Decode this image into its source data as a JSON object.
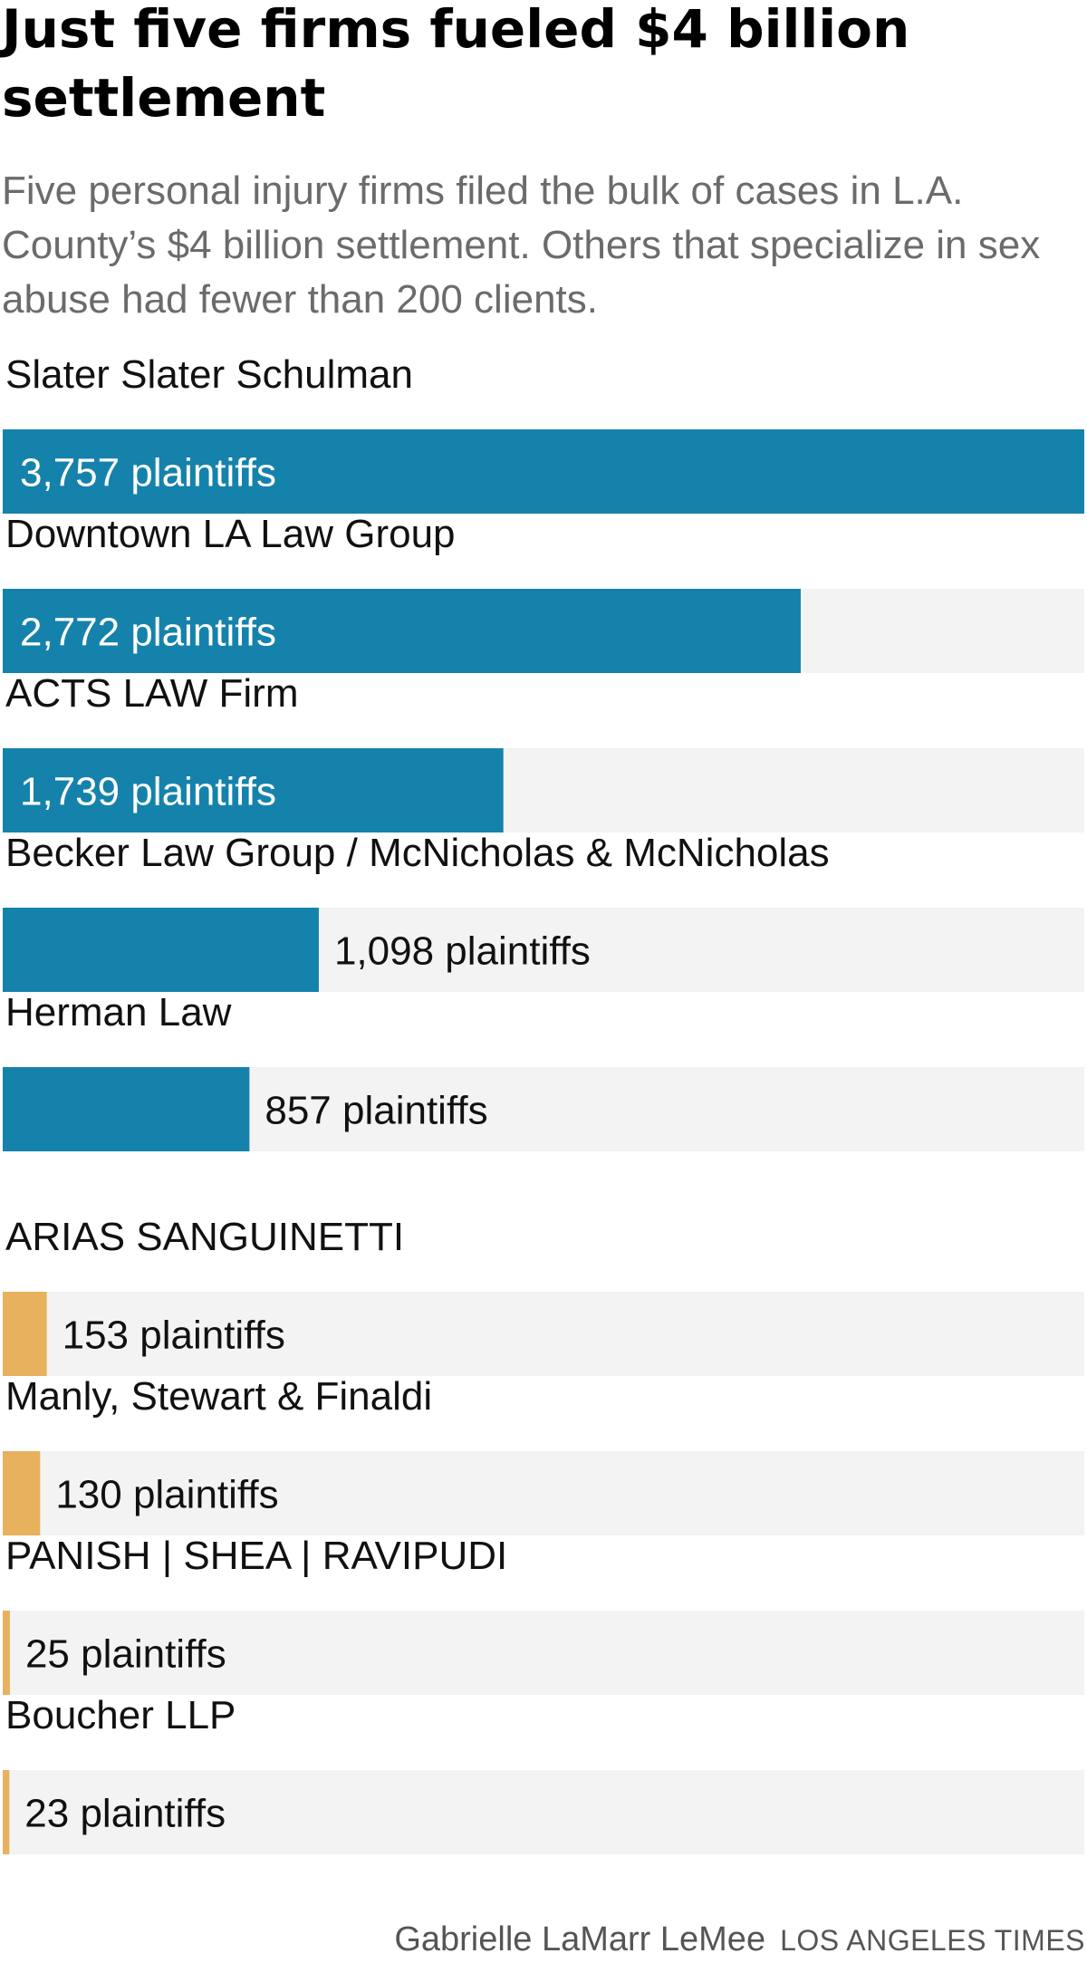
{
  "title": "Just five firms fueled $4 billion settlement",
  "subtitle": "Five personal injury firms filed the bulk of cases in L.A. County’s $4 billion settlement. Others that specialize in sex abuse had fewer than 200 clients.",
  "chart_data": {
    "type": "bar",
    "orientation": "horizontal",
    "grid": false,
    "xlim": [
      0,
      3757
    ],
    "colors": {
      "personal_injury": "#1582ab",
      "sex_abuse": "#e8b15d",
      "track": "#f3f3f3",
      "label_inside": "#ffffff",
      "label_outside": "#111111"
    },
    "groups": [
      {
        "color_key": "personal_injury",
        "bars": [
          {
            "category": "Slater Slater Schulman",
            "value": 3757,
            "label": "3,757 plaintiffs"
          },
          {
            "category": "Downtown LA Law Group",
            "value": 2772,
            "label": "2,772 plaintiffs"
          },
          {
            "category": "ACTS LAW Firm",
            "value": 1739,
            "label": "1,739 plaintiffs"
          },
          {
            "category": "Becker Law Group / McNicholas & McNicholas",
            "value": 1098,
            "label": "1,098 plaintiffs"
          },
          {
            "category": "Herman Law",
            "value": 857,
            "label": "857 plaintiffs"
          }
        ]
      },
      {
        "color_key": "sex_abuse",
        "bars": [
          {
            "category": "ARIAS SANGUINETTI",
            "value": 153,
            "label": "153 plaintiffs"
          },
          {
            "category": "Manly, Stewart & Finaldi",
            "value": 130,
            "label": "130 plaintiffs"
          },
          {
            "category": "PANISH | SHEA | RAVIPUDI",
            "value": 25,
            "label": "25 plaintiffs"
          },
          {
            "category": "Boucher LLP",
            "value": 23,
            "label": "23 plaintiffs"
          }
        ]
      }
    ]
  },
  "credit": {
    "author": "Gabrielle LaMarr LeMee",
    "organization": "LOS ANGELES TIMES"
  }
}
